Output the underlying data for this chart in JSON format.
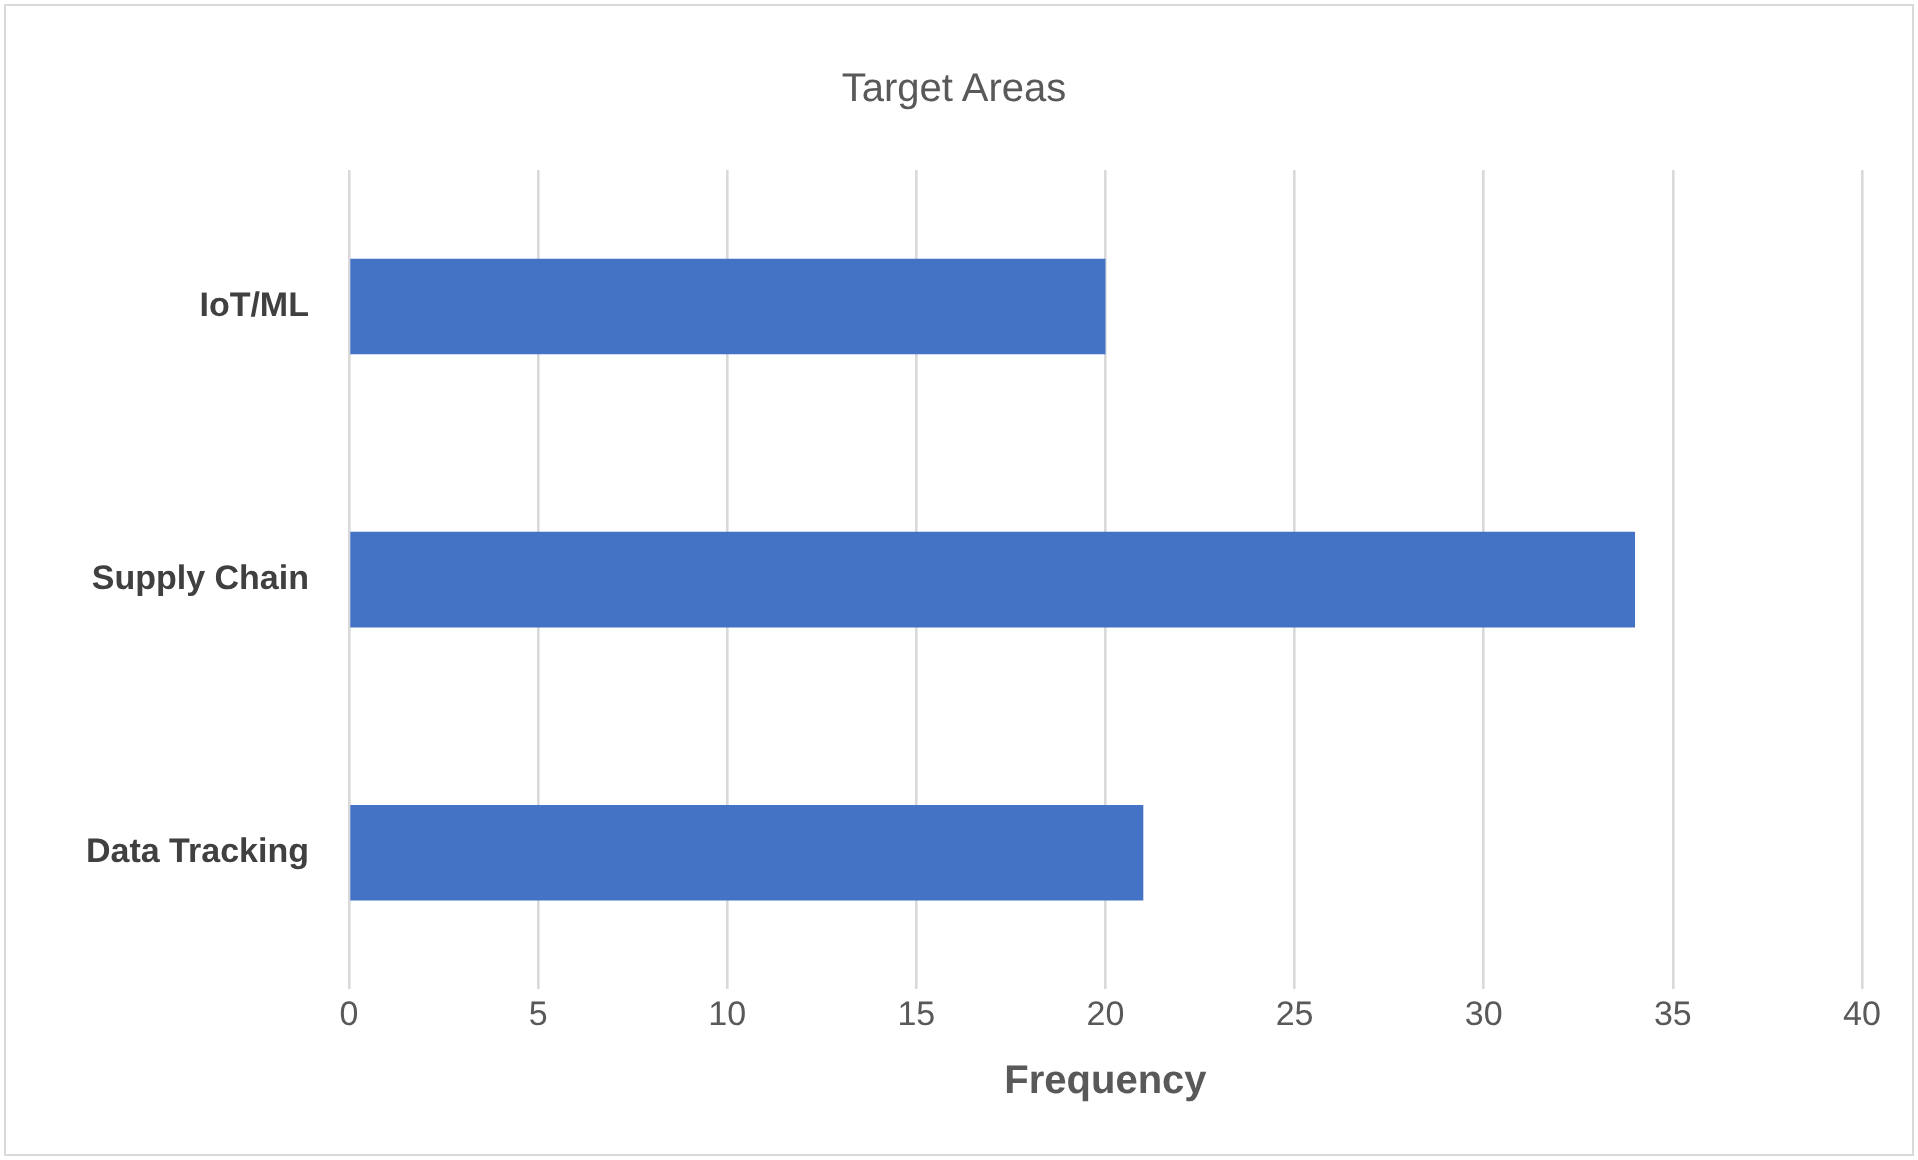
{
  "chart_data": {
    "type": "bar",
    "orientation": "horizontal",
    "title": "Target Areas",
    "xlabel": "Frequency",
    "categories": [
      "IoT/ML",
      "Supply Chain",
      "Data Tracking"
    ],
    "values": [
      20,
      34,
      21
    ],
    "color": "#4472c4",
    "xlim": [
      0,
      40
    ],
    "xticks": [
      0,
      5,
      10,
      15,
      20,
      25,
      30,
      35,
      40
    ],
    "grid": "x"
  }
}
